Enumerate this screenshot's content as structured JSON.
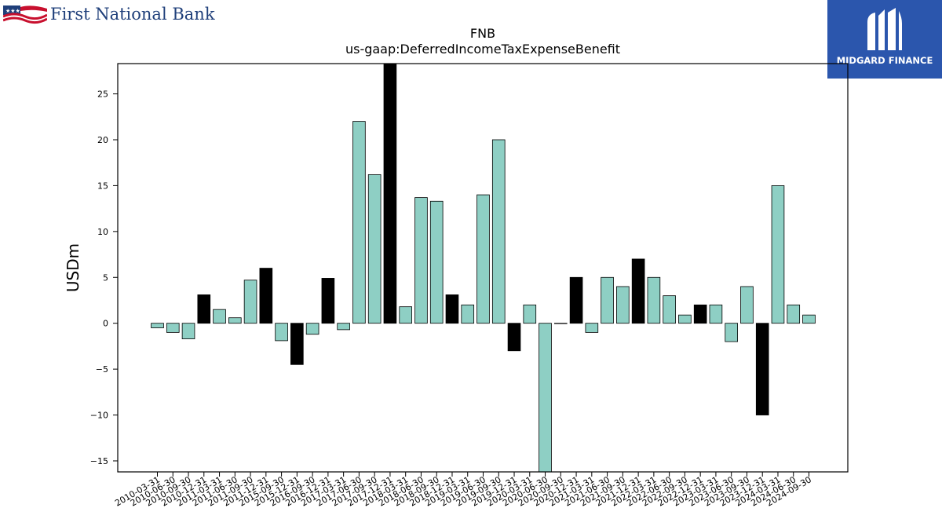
{
  "logos": {
    "left_text": "First National Bank",
    "right_text": "MIDGARD FINANCE"
  },
  "chart_data": {
    "type": "bar",
    "title": "FNB",
    "subtitle": "us-gaap:DeferredIncomeTaxExpenseBenefit",
    "xlabel": "",
    "ylabel": "USDm",
    "ylim": [
      -16.2,
      28.3
    ],
    "yticks": [
      -15,
      -10,
      -5,
      0,
      5,
      10,
      15,
      20,
      25
    ],
    "grid": false,
    "colors": {
      "positive_bar": "#8ecfc4",
      "highlight_bar": "#000000",
      "edge": "#000000"
    },
    "categories": [
      "2010-03-31",
      "2010-06-30",
      "2010-09-30",
      "2010-12-31",
      "2011-03-31",
      "2011-06-30",
      "2011-09-30",
      "2011-12-31",
      "2015-09-30",
      "2015-12-31",
      "2016-09-30",
      "2016-12-31",
      "2017-03-31",
      "2017-06-30",
      "2017-09-30",
      "2017-12-31",
      "2018-03-31",
      "2018-06-30",
      "2018-09-30",
      "2018-12-31",
      "2019-03-31",
      "2019-06-30",
      "2019-09-30",
      "2019-12-31",
      "2020-03-31",
      "2020-06-30",
      "2020-09-30",
      "2020-12-31",
      "2021-03-31",
      "2021-06-30",
      "2021-09-30",
      "2021-12-31",
      "2022-03-31",
      "2022-06-30",
      "2022-09-30",
      "2022-12-31",
      "2023-03-31",
      "2023-06-30",
      "2023-09-30",
      "2023-12-31",
      "2024-03-31",
      "2024-06-30",
      "2024-09-30"
    ],
    "values": [
      -0.5,
      -1.0,
      -1.7,
      3.1,
      1.5,
      0.6,
      4.7,
      6.0,
      -1.9,
      -4.5,
      -1.2,
      4.9,
      -0.7,
      22.0,
      16.2,
      28.3,
      1.8,
      13.7,
      13.3,
      3.1,
      2.0,
      14.0,
      20.0,
      -3.0,
      2.0,
      -16.2,
      0.0,
      5.0,
      -1.0,
      5.0,
      4.0,
      7.0,
      5.0,
      3.0,
      0.9,
      2.0,
      2.0,
      -2.0,
      4.0,
      -10.0,
      15.0,
      2.0,
      0.9
    ],
    "highlight": [
      false,
      false,
      false,
      true,
      false,
      false,
      false,
      true,
      false,
      true,
      false,
      true,
      false,
      false,
      false,
      true,
      false,
      false,
      false,
      true,
      false,
      false,
      false,
      true,
      false,
      false,
      false,
      true,
      false,
      false,
      false,
      true,
      false,
      false,
      false,
      true,
      false,
      false,
      false,
      true,
      false,
      false,
      false
    ]
  }
}
